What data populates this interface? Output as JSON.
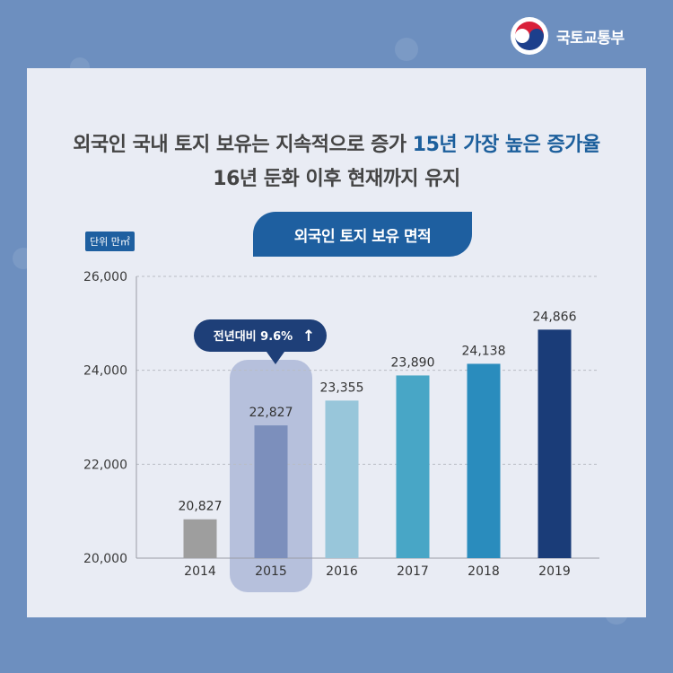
{
  "brand": {
    "name": "국토교통부",
    "colors": {
      "red": "#d9213a",
      "blue": "#1c3f8c"
    }
  },
  "headline": {
    "line1_part1": "외국인 국내 토지 보유는 지속적으로 증가 ",
    "line1_highlight": "15년 가장 높은 증가율",
    "line2": "16년 둔화 이후 현재까지 유지"
  },
  "chart_data": {
    "type": "bar",
    "title": "외국인 토지 보유 면적",
    "unit_label": "단위 만㎡",
    "categories": [
      "2014",
      "2015",
      "2016",
      "2017",
      "2018",
      "2019"
    ],
    "values": [
      20827,
      22827,
      23355,
      23890,
      24138,
      24866
    ],
    "value_labels": [
      "20,827",
      "22,827",
      "23,355",
      "23,890",
      "24,138",
      "24,866"
    ],
    "bar_colors": [
      "#9e9e9e",
      "#7c8fbc",
      "#98c6da",
      "#48a6c6",
      "#2a8cbd",
      "#1a3c78"
    ],
    "ylim": [
      20000,
      26000
    ],
    "yticks": [
      20000,
      22000,
      24000,
      26000
    ],
    "ytick_labels": [
      "20,000",
      "22,000",
      "24,000",
      "26,000"
    ],
    "grid": true,
    "highlight": {
      "category": "2015",
      "callout": "전년대비 9.6%",
      "arrow": "↑"
    }
  }
}
